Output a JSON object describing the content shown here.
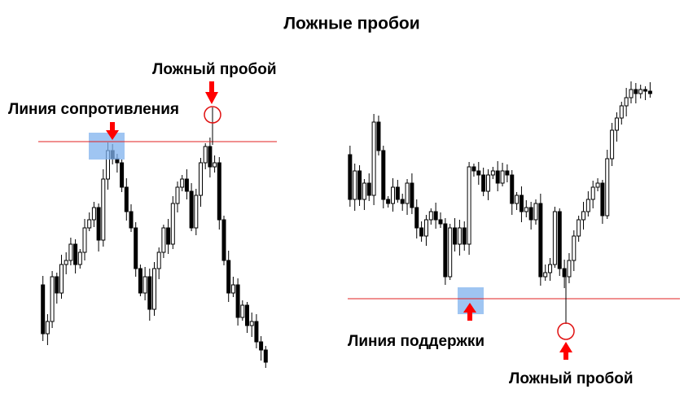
{
  "title": "Ложные пробои",
  "left_panel": {
    "false_breakout_label": "Ложный пробой",
    "line_label": "Линия сопротивления"
  },
  "right_panel": {
    "false_breakout_label": "Ложный пробой",
    "line_label": "Линия поддержки"
  }
}
